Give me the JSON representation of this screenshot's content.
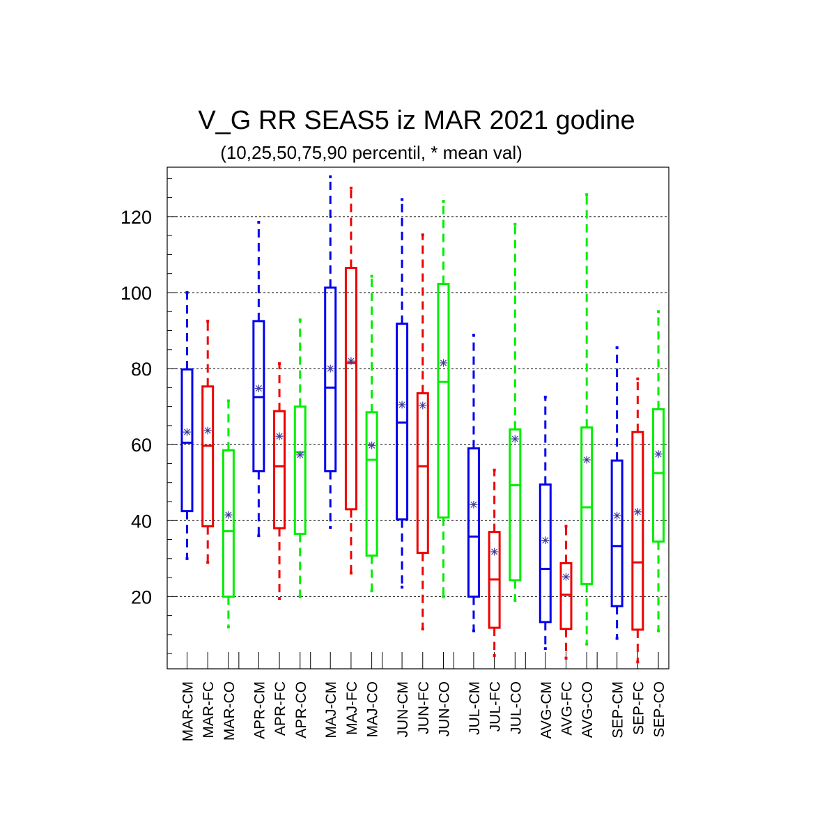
{
  "chart_data": {
    "type": "box",
    "title": "V_G RR SEAS5 iz MAR 2021 godine",
    "subtitle": "(10,25,50,75,90 percentil, * mean val)",
    "xlabel": "",
    "ylabel": "",
    "ylim": [
      1,
      133
    ],
    "yticks": [
      20,
      40,
      60,
      80,
      100,
      120
    ],
    "grid": true,
    "colors": {
      "CM": "#0000ee",
      "FC": "#ee0000",
      "CO": "#00ee00",
      "mean_marker": "#3b3b9b"
    },
    "boxes": [
      {
        "label": "MAR-CM",
        "kind": "CM",
        "p10": 30.0,
        "p25": 42.5,
        "p50": 60.5,
        "p75": 79.8,
        "p90": 100.0,
        "mean": 63.3
      },
      {
        "label": "MAR-FC",
        "kind": "FC",
        "p10": 29.0,
        "p25": 38.5,
        "p50": 59.7,
        "p75": 75.3,
        "p90": 92.5,
        "mean": 63.7
      },
      {
        "label": "MAR-CO",
        "kind": "CO",
        "p10": 12.0,
        "p25": 20.0,
        "p50": 37.2,
        "p75": 58.5,
        "p90": 71.5,
        "mean": 41.5
      },
      {
        "label": "APR-CM",
        "kind": "CM",
        "p10": 36.0,
        "p25": 53.0,
        "p50": 72.5,
        "p75": 92.5,
        "p90": 118.5,
        "mean": 74.8
      },
      {
        "label": "APR-FC",
        "kind": "FC",
        "p10": 19.5,
        "p25": 38.0,
        "p50": 54.3,
        "p75": 68.8,
        "p90": 81.3,
        "mean": 62.2
      },
      {
        "label": "APR-CO",
        "kind": "CO",
        "p10": 20.0,
        "p25": 36.5,
        "p50": 58.0,
        "p75": 70.0,
        "p90": 92.8,
        "mean": 57.3
      },
      {
        "label": "MAJ-CM",
        "kind": "CM",
        "p10": 38.2,
        "p25": 53.0,
        "p50": 75.0,
        "p75": 101.3,
        "p90": 130.5,
        "mean": 80.0
      },
      {
        "label": "MAJ-FC",
        "kind": "FC",
        "p10": 26.2,
        "p25": 43.0,
        "p50": 81.5,
        "p75": 106.5,
        "p90": 127.5,
        "mean": 82.0
      },
      {
        "label": "MAJ-CO",
        "kind": "CO",
        "p10": 21.5,
        "p25": 30.8,
        "p50": 56.0,
        "p75": 68.5,
        "p90": 104.3,
        "mean": 59.8
      },
      {
        "label": "JUN-CM",
        "kind": "CM",
        "p10": 22.5,
        "p25": 40.3,
        "p50": 65.8,
        "p75": 91.8,
        "p90": 124.5,
        "mean": 70.5
      },
      {
        "label": "JUN-FC",
        "kind": "FC",
        "p10": 11.5,
        "p25": 31.5,
        "p50": 54.3,
        "p75": 73.5,
        "p90": 115.2,
        "mean": 70.3
      },
      {
        "label": "JUN-CO",
        "kind": "CO",
        "p10": 20.0,
        "p25": 40.8,
        "p50": 76.5,
        "p75": 102.3,
        "p90": 124.0,
        "mean": 81.5
      },
      {
        "label": "JUL-CM",
        "kind": "CM",
        "p10": 11.0,
        "p25": 20.0,
        "p50": 35.8,
        "p75": 59.0,
        "p90": 88.8,
        "mean": 44.2
      },
      {
        "label": "JUL-FC",
        "kind": "FC",
        "p10": 4.5,
        "p25": 11.8,
        "p50": 24.5,
        "p75": 37.0,
        "p90": 53.3,
        "mean": 31.8
      },
      {
        "label": "JUL-CO",
        "kind": "CO",
        "p10": 19.0,
        "p25": 24.3,
        "p50": 49.3,
        "p75": 64.0,
        "p90": 118.0,
        "mean": 61.5
      },
      {
        "label": "AVG-CM",
        "kind": "CM",
        "p10": 6.3,
        "p25": 13.3,
        "p50": 27.3,
        "p75": 49.5,
        "p90": 72.5,
        "mean": 34.8
      },
      {
        "label": "AVG-FC",
        "kind": "FC",
        "p10": 3.8,
        "p25": 11.5,
        "p50": 20.5,
        "p75": 28.8,
        "p90": 38.5,
        "mean": 25.2
      },
      {
        "label": "AVG-CO",
        "kind": "CO",
        "p10": 7.5,
        "p25": 23.3,
        "p50": 43.5,
        "p75": 64.5,
        "p90": 125.8,
        "mean": 56.0
      },
      {
        "label": "SEP-CM",
        "kind": "CM",
        "p10": 9.0,
        "p25": 17.5,
        "p50": 33.3,
        "p75": 55.8,
        "p90": 85.5,
        "mean": 41.3
      },
      {
        "label": "SEP-FC",
        "kind": "FC",
        "p10": 2.8,
        "p25": 11.3,
        "p50": 29.0,
        "p75": 63.3,
        "p90": 77.3,
        "mean": 42.3
      },
      {
        "label": "SEP-CO",
        "kind": "CO",
        "p10": 11.0,
        "p25": 34.5,
        "p50": 52.5,
        "p75": 69.3,
        "p90": 95.0,
        "mean": 57.5
      }
    ]
  }
}
